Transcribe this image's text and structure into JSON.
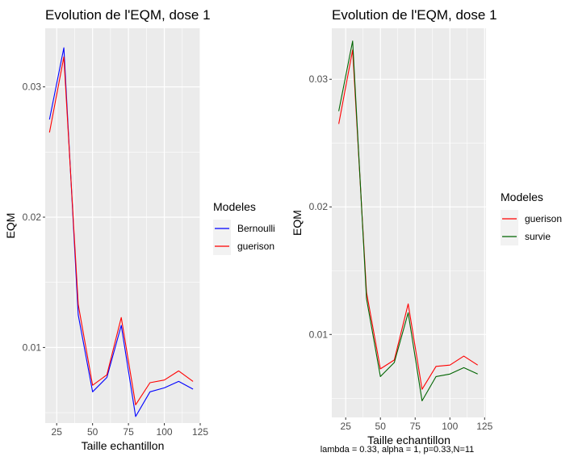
{
  "chart_data": [
    {
      "type": "line",
      "title": "Evolution de l'EQM, dose 1",
      "xlabel": "Taille echantillon",
      "ylabel": "EQM",
      "x": [
        20,
        30,
        40,
        50,
        60,
        70,
        80,
        90,
        100,
        110,
        120
      ],
      "xlim": [
        17,
        125
      ],
      "ylim": [
        0.0042,
        0.0345
      ],
      "xticks": [
        25,
        50,
        75,
        100,
        125
      ],
      "yticks": [
        0.01,
        0.02,
        0.03
      ],
      "ytick_labels": [
        "0.01",
        "0.02",
        "0.03"
      ],
      "grid": true,
      "legend": {
        "title": "Modeles",
        "position": "right"
      },
      "series": [
        {
          "name": "Bernoulli",
          "color": "#0000ff",
          "values": [
            0.0275,
            0.033,
            0.0125,
            0.0066,
            0.0077,
            0.0117,
            0.0047,
            0.0066,
            0.0069,
            0.0074,
            0.0068
          ]
        },
        {
          "name": "guerison",
          "color": "#ff0000",
          "values": [
            0.0265,
            0.0323,
            0.0133,
            0.0071,
            0.0079,
            0.0123,
            0.0056,
            0.0073,
            0.0075,
            0.0082,
            0.0074
          ]
        }
      ]
    },
    {
      "type": "line",
      "title": "Evolution de l'EQM, dose 1",
      "xlabel": "Taille echantillon",
      "ylabel": "EQM",
      "x": [
        20,
        30,
        40,
        50,
        60,
        70,
        80,
        90,
        100,
        110,
        120
      ],
      "xlim": [
        15,
        126
      ],
      "ylim": [
        0.0035,
        0.034
      ],
      "xticks": [
        25,
        50,
        75,
        100,
        125
      ],
      "yticks": [
        0.01,
        0.02,
        0.03
      ],
      "ytick_labels": [
        "0.01",
        "0.02",
        "0.03"
      ],
      "grid": true,
      "legend": {
        "title": "Modeles",
        "position": "right"
      },
      "caption": "lambda = 0.33, alpha = 1, p=0.33,N=11",
      "series": [
        {
          "name": "guerison",
          "color": "#ff0000",
          "values": [
            0.0265,
            0.0323,
            0.0133,
            0.0073,
            0.008,
            0.0124,
            0.0057,
            0.0075,
            0.0076,
            0.0083,
            0.0076
          ]
        },
        {
          "name": "survie",
          "color": "#006400",
          "values": [
            0.0275,
            0.033,
            0.0128,
            0.0067,
            0.0078,
            0.0117,
            0.0048,
            0.0067,
            0.0069,
            0.0074,
            0.0069
          ]
        }
      ]
    }
  ]
}
